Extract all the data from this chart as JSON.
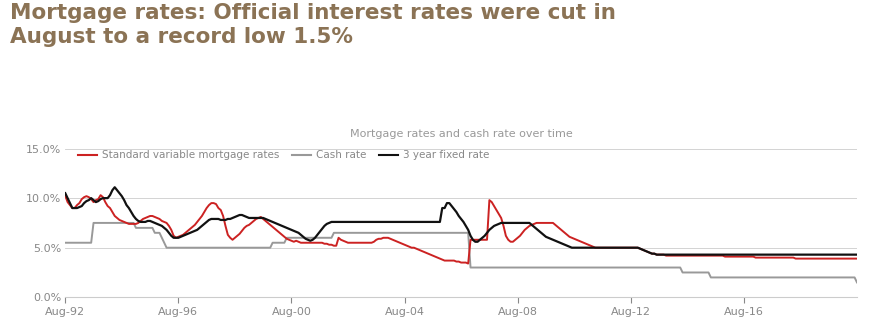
{
  "title_line1": "Mortgage rates: Official interest rates were cut in",
  "title_line2": "August to a record low 1.5%",
  "title_color": "#8B7355",
  "chart_subtitle": "Mortgage rates and cash rate over time",
  "chart_subtitle_color": "#999999",
  "background_color": "#ffffff",
  "plot_background": "#ffffff",
  "legend_labels": [
    "Standard variable mortgage rates",
    "Cash rate",
    "3 year fixed rate"
  ],
  "legend_colors": [
    "#cc2222",
    "#999999",
    "#111111"
  ],
  "ylim": [
    0.0,
    0.155
  ],
  "yticks": [
    0.0,
    0.05,
    0.1,
    0.15
  ],
  "xtick_labels": [
    "Aug-92",
    "Aug-96",
    "Aug-00",
    "Aug-04",
    "Aug-08",
    "Aug-12",
    "Aug-16"
  ],
  "x_tick_positions": [
    0,
    48,
    96,
    144,
    192,
    240,
    288
  ],
  "axis_color": "#888888",
  "grid_color": "#cccccc",
  "standard_variable": [
    10.25,
    9.6,
    9.3,
    9.0,
    9.0,
    9.3,
    9.5,
    9.9,
    10.1,
    10.2,
    10.1,
    9.9,
    9.6,
    9.8,
    9.9,
    10.3,
    10.1,
    9.6,
    9.2,
    9.0,
    8.6,
    8.2,
    8.0,
    7.8,
    7.7,
    7.6,
    7.5,
    7.4,
    7.4,
    7.4,
    7.4,
    7.5,
    7.7,
    7.9,
    8.0,
    8.1,
    8.2,
    8.2,
    8.1,
    8.0,
    7.9,
    7.7,
    7.6,
    7.5,
    7.2,
    6.8,
    6.2,
    6.0,
    6.1,
    6.2,
    6.3,
    6.5,
    6.7,
    6.9,
    7.1,
    7.3,
    7.6,
    7.9,
    8.2,
    8.6,
    9.0,
    9.3,
    9.5,
    9.5,
    9.4,
    9.0,
    8.8,
    8.2,
    7.2,
    6.3,
    6.0,
    5.8,
    6.0,
    6.2,
    6.4,
    6.7,
    7.0,
    7.2,
    7.3,
    7.5,
    7.7,
    7.9,
    8.0,
    8.1,
    7.9,
    7.7,
    7.5,
    7.3,
    7.1,
    6.9,
    6.7,
    6.5,
    6.3,
    6.1,
    5.9,
    5.8,
    5.7,
    5.6,
    5.7,
    5.6,
    5.5,
    5.5,
    5.5,
    5.5,
    5.5,
    5.5,
    5.5,
    5.5,
    5.5,
    5.5,
    5.4,
    5.4,
    5.3,
    5.3,
    5.2,
    5.2,
    6.0,
    5.8,
    5.7,
    5.6,
    5.5,
    5.5,
    5.5,
    5.5,
    5.5,
    5.5,
    5.5,
    5.5,
    5.5,
    5.5,
    5.5,
    5.6,
    5.8,
    5.9,
    5.9,
    6.0,
    6.0,
    6.0,
    5.9,
    5.8,
    5.7,
    5.6,
    5.5,
    5.4,
    5.3,
    5.2,
    5.1,
    5.0,
    5.0,
    4.9,
    4.8,
    4.7,
    4.6,
    4.5,
    4.4,
    4.3,
    4.2,
    4.1,
    4.0,
    3.9,
    3.8,
    3.7,
    3.7,
    3.7,
    3.7,
    3.7,
    3.6,
    3.6,
    3.5,
    3.5,
    3.5,
    3.4,
    5.8,
    5.8,
    5.8,
    5.8,
    5.8,
    5.8,
    5.8,
    5.8,
    9.8,
    9.6,
    9.2,
    8.8,
    8.4,
    8.0,
    7.2,
    6.2,
    5.8,
    5.6,
    5.6,
    5.8,
    6.0,
    6.2,
    6.5,
    6.8,
    7.0,
    7.2,
    7.3,
    7.4,
    7.5,
    7.5,
    7.5,
    7.5,
    7.5,
    7.5,
    7.5,
    7.5,
    7.3,
    7.1,
    6.9,
    6.7,
    6.5,
    6.3,
    6.1,
    6.0,
    5.9,
    5.8,
    5.7,
    5.6,
    5.5,
    5.4,
    5.3,
    5.2,
    5.1,
    5.0,
    5.0,
    5.0,
    5.0,
    5.0,
    5.0,
    5.0,
    5.0,
    5.0,
    5.0,
    5.0,
    5.0,
    5.0,
    5.0,
    5.0,
    5.0,
    5.0,
    5.0,
    5.0,
    4.9,
    4.8,
    4.7,
    4.6,
    4.5,
    4.4,
    4.4,
    4.3,
    4.3,
    4.3,
    4.3,
    4.2,
    4.2,
    4.2,
    4.2,
    4.2,
    4.2,
    4.2,
    4.2,
    4.2,
    4.2,
    4.2,
    4.2,
    4.2,
    4.2,
    4.2,
    4.2,
    4.2,
    4.2,
    4.2,
    4.2,
    4.2,
    4.2,
    4.2,
    4.2,
    4.2,
    4.1,
    4.1,
    4.1,
    4.1,
    4.1,
    4.1,
    4.1,
    4.1,
    4.1,
    4.1,
    4.1,
    4.1,
    4.1,
    4.0,
    4.0,
    4.0,
    4.0,
    4.0,
    4.0,
    4.0,
    4.0,
    4.0,
    4.0,
    4.0,
    4.0,
    4.0,
    4.0,
    4.0,
    4.0,
    4.0,
    3.9,
    3.9,
    3.9,
    3.9,
    3.9,
    3.9,
    3.9,
    3.9,
    3.9,
    3.9,
    3.9,
    3.9,
    3.9,
    3.9,
    3.9,
    3.9,
    3.9,
    3.9,
    3.9,
    3.9,
    3.9,
    3.9,
    3.9,
    3.9,
    3.9,
    3.9,
    3.9,
    3.9,
    3.9,
    3.9,
    3.9,
    3.9,
    3.9,
    3.9,
    3.9,
    3.9,
    3.9,
    3.9,
    3.9,
    3.9,
    3.9,
    3.9,
    3.9,
    3.9,
    3.9,
    3.9,
    3.9,
    3.9,
    3.9,
    3.9,
    3.9,
    3.9,
    3.9,
    3.9,
    3.9,
    3.9,
    3.9,
    3.9,
    3.9,
    3.9,
    3.9,
    3.9,
    3.9,
    3.9,
    3.9,
    3.9,
    3.9,
    3.9,
    3.9,
    3.9,
    3.9,
    3.9,
    3.9,
    3.9,
    3.9,
    3.9,
    3.9,
    3.9,
    3.9,
    3.9,
    3.9,
    3.9,
    3.9,
    3.9,
    3.9,
    3.9,
    3.9,
    3.9,
    3.9,
    3.9,
    3.9,
    3.9,
    3.9,
    3.9,
    3.9,
    3.9,
    3.9,
    3.9,
    3.9,
    3.9,
    3.9,
    3.9,
    3.9,
    3.9,
    3.9,
    3.9,
    3.9,
    3.9,
    3.9,
    3.9,
    3.9
  ],
  "cash_rate": [
    5.5,
    5.5,
    5.5,
    5.5,
    5.5,
    5.5,
    5.5,
    5.5,
    5.5,
    5.5,
    5.5,
    5.5,
    7.5,
    7.5,
    7.5,
    7.5,
    7.5,
    7.5,
    7.5,
    7.5,
    7.5,
    7.5,
    7.5,
    7.5,
    7.5,
    7.5,
    7.5,
    7.5,
    7.5,
    7.5,
    7.0,
    7.0,
    7.0,
    7.0,
    7.0,
    7.0,
    7.0,
    7.0,
    6.5,
    6.5,
    6.5,
    6.0,
    5.5,
    5.0,
    5.0,
    5.0,
    5.0,
    5.0,
    5.0,
    5.0,
    5.0,
    5.0,
    5.0,
    5.0,
    5.0,
    5.0,
    5.0,
    5.0,
    5.0,
    5.0,
    5.0,
    5.0,
    5.0,
    5.0,
    5.0,
    5.0,
    5.0,
    5.0,
    5.0,
    5.0,
    5.0,
    5.0,
    5.0,
    5.0,
    5.0,
    5.0,
    5.0,
    5.0,
    5.0,
    5.0,
    5.0,
    5.0,
    5.0,
    5.0,
    5.0,
    5.0,
    5.0,
    5.0,
    5.5,
    5.5,
    5.5,
    5.5,
    5.5,
    5.5,
    6.0,
    6.0,
    6.0,
    6.0,
    6.0,
    6.0,
    6.0,
    6.0,
    6.0,
    6.0,
    6.0,
    6.0,
    6.0,
    6.0,
    6.0,
    6.0,
    6.0,
    6.0,
    6.0,
    6.0,
    6.5,
    6.5,
    6.5,
    6.5,
    6.5,
    6.5,
    6.5,
    6.5,
    6.5,
    6.5,
    6.5,
    6.5,
    6.5,
    6.5,
    6.5,
    6.5,
    6.5,
    6.5,
    6.5,
    6.5,
    6.5,
    6.5,
    6.5,
    6.5,
    6.5,
    6.5,
    6.5,
    6.5,
    6.5,
    6.5,
    6.5,
    6.5,
    6.5,
    6.5,
    6.5,
    6.5,
    6.5,
    6.5,
    6.5,
    6.5,
    6.5,
    6.5,
    6.5,
    6.5,
    6.5,
    6.5,
    6.5,
    6.5,
    6.5,
    6.5,
    6.5,
    6.5,
    6.5,
    6.5,
    6.5,
    6.5,
    6.5,
    6.5,
    3.0,
    3.0,
    3.0,
    3.0,
    3.0,
    3.0,
    3.0,
    3.0,
    3.0,
    3.0,
    3.0,
    3.0,
    3.0,
    3.0,
    3.0,
    3.0,
    3.0,
    3.0,
    3.0,
    3.0,
    3.0,
    3.0,
    3.0,
    3.0,
    3.0,
    3.0,
    3.0,
    3.0,
    3.0,
    3.0,
    3.0,
    3.0,
    3.0,
    3.0,
    3.0,
    3.0,
    3.0,
    3.0,
    3.0,
    3.0,
    3.0,
    3.0,
    3.0,
    3.0,
    3.0,
    3.0,
    3.0,
    3.0,
    3.0,
    3.0,
    3.0,
    3.0,
    3.0,
    3.0,
    3.0,
    3.0,
    3.0,
    3.0,
    3.0,
    3.0,
    3.0,
    3.0,
    3.0,
    3.0,
    3.0,
    3.0,
    3.0,
    3.0,
    3.0,
    3.0,
    3.0,
    3.0,
    3.0,
    3.0,
    3.0,
    3.0,
    3.0,
    3.0,
    3.0,
    3.0,
    3.0,
    3.0,
    3.0,
    3.0,
    3.0,
    3.0,
    3.0,
    3.0,
    3.0,
    3.0,
    2.5,
    2.5,
    2.5,
    2.5,
    2.5,
    2.5,
    2.5,
    2.5,
    2.5,
    2.5,
    2.5,
    2.5,
    2.0,
    2.0,
    2.0,
    2.0,
    2.0,
    2.0,
    2.0,
    2.0,
    2.0,
    2.0,
    2.0,
    2.0,
    2.0,
    2.0,
    2.0,
    2.0,
    2.0,
    2.0,
    2.0,
    2.0,
    2.0,
    2.0,
    2.0,
    2.0,
    2.0,
    2.0,
    2.0,
    2.0,
    2.0,
    2.0,
    2.0,
    2.0,
    2.0,
    2.0,
    2.0,
    2.0,
    2.0,
    2.0,
    2.0,
    2.0,
    2.0,
    2.0,
    2.0,
    2.0,
    2.0,
    2.0,
    2.0,
    2.0,
    2.0,
    2.0,
    2.0,
    2.0,
    2.0,
    2.0,
    2.0,
    2.0,
    2.0,
    2.0,
    2.0,
    2.0,
    2.0,
    2.0,
    1.5,
    1.5,
    1.5,
    1.5,
    1.5,
    1.5,
    1.5,
    1.5,
    1.5,
    1.5,
    1.5,
    1.5,
    1.5,
    1.5,
    1.5,
    1.5,
    1.5,
    1.5,
    1.5,
    1.5,
    1.5,
    1.5,
    1.5,
    1.5,
    1.5
  ],
  "fixed_3yr": [
    10.5,
    10.0,
    9.5,
    9.0,
    9.0,
    9.0,
    9.1,
    9.2,
    9.5,
    9.7,
    9.8,
    10.0,
    9.8,
    9.6,
    9.7,
    9.9,
    10.0,
    10.0,
    10.0,
    10.3,
    10.8,
    11.1,
    10.8,
    10.5,
    10.2,
    9.8,
    9.3,
    9.0,
    8.6,
    8.2,
    7.9,
    7.7,
    7.6,
    7.6,
    7.6,
    7.7,
    7.7,
    7.6,
    7.5,
    7.4,
    7.3,
    7.2,
    7.0,
    6.8,
    6.5,
    6.2,
    6.0,
    6.0,
    6.0,
    6.1,
    6.2,
    6.3,
    6.4,
    6.5,
    6.6,
    6.7,
    6.8,
    7.0,
    7.2,
    7.4,
    7.6,
    7.8,
    7.9,
    7.9,
    7.9,
    7.9,
    7.8,
    7.8,
    7.8,
    7.9,
    7.9,
    8.0,
    8.1,
    8.2,
    8.3,
    8.3,
    8.2,
    8.1,
    8.0,
    8.0,
    8.0,
    8.0,
    8.0,
    8.0,
    8.0,
    7.9,
    7.8,
    7.7,
    7.6,
    7.5,
    7.4,
    7.3,
    7.2,
    7.1,
    7.0,
    6.9,
    6.8,
    6.7,
    6.6,
    6.5,
    6.3,
    6.1,
    5.9,
    5.8,
    5.7,
    5.8,
    6.0,
    6.3,
    6.6,
    6.9,
    7.2,
    7.4,
    7.5,
    7.6,
    7.6,
    7.6,
    7.6,
    7.6,
    7.6,
    7.6,
    7.6,
    7.6,
    7.6,
    7.6,
    7.6,
    7.6,
    7.6,
    7.6,
    7.6,
    7.6,
    7.6,
    7.6,
    7.6,
    7.6,
    7.6,
    7.6,
    7.6,
    7.6,
    7.6,
    7.6,
    7.6,
    7.6,
    7.6,
    7.6,
    7.6,
    7.6,
    7.6,
    7.6,
    7.6,
    7.6,
    7.6,
    7.6,
    7.6,
    7.6,
    7.6,
    7.6,
    7.6,
    7.6,
    7.6,
    7.6,
    9.0,
    9.0,
    9.5,
    9.5,
    9.2,
    8.9,
    8.6,
    8.2,
    7.9,
    7.6,
    7.2,
    6.8,
    6.2,
    5.8,
    5.6,
    5.6,
    5.8,
    6.0,
    6.2,
    6.5,
    6.8,
    7.0,
    7.2,
    7.3,
    7.4,
    7.5,
    7.5,
    7.5,
    7.5,
    7.5,
    7.5,
    7.5,
    7.5,
    7.5,
    7.5,
    7.5,
    7.5,
    7.5,
    7.3,
    7.1,
    6.9,
    6.7,
    6.5,
    6.3,
    6.1,
    6.0,
    5.9,
    5.8,
    5.7,
    5.6,
    5.5,
    5.4,
    5.3,
    5.2,
    5.1,
    5.0,
    5.0,
    5.0,
    5.0,
    5.0,
    5.0,
    5.0,
    5.0,
    5.0,
    5.0,
    5.0,
    5.0,
    5.0,
    5.0,
    5.0,
    5.0,
    5.0,
    5.0,
    5.0,
    5.0,
    5.0,
    5.0,
    5.0,
    5.0,
    5.0,
    5.0,
    5.0,
    5.0,
    5.0,
    4.9,
    4.8,
    4.7,
    4.6,
    4.5,
    4.4,
    4.4,
    4.3,
    4.3,
    4.3,
    4.3,
    4.3,
    4.3,
    4.3,
    4.3,
    4.3,
    4.3,
    4.3,
    4.3,
    4.3,
    4.3,
    4.3,
    4.3,
    4.3,
    4.3,
    4.3,
    4.3,
    4.3,
    4.3,
    4.3,
    4.3,
    4.3,
    4.3,
    4.3,
    4.3,
    4.3,
    4.3,
    4.3,
    4.3,
    4.3,
    4.3,
    4.3,
    4.3,
    4.3,
    4.3,
    4.3,
    4.3,
    4.3,
    4.3,
    4.3,
    4.3,
    4.3,
    4.3,
    4.3,
    4.3,
    4.3,
    4.3,
    4.3,
    4.3,
    4.3,
    4.3,
    4.3,
    4.3,
    4.3,
    4.3,
    4.3,
    4.3,
    4.3,
    4.3,
    4.3,
    4.3,
    4.3,
    4.3,
    4.3,
    4.3,
    4.3,
    4.3,
    4.3,
    4.3,
    4.3,
    4.3,
    4.3,
    4.3,
    4.3,
    4.3,
    4.3,
    4.3,
    4.3,
    4.3,
    4.3,
    4.3,
    4.3,
    4.3,
    4.3,
    4.3,
    4.3,
    4.3,
    4.3,
    4.3,
    4.3,
    4.3,
    4.3,
    4.3,
    4.3,
    4.3,
    4.3,
    4.3,
    4.3,
    4.3,
    4.3,
    4.3,
    4.3,
    4.3,
    4.3,
    4.3,
    4.3,
    4.3,
    4.3,
    4.3,
    4.3,
    4.3,
    4.3,
    4.3,
    4.3,
    4.3,
    4.3,
    4.3,
    4.3,
    4.3
  ],
  "n_points": 337
}
